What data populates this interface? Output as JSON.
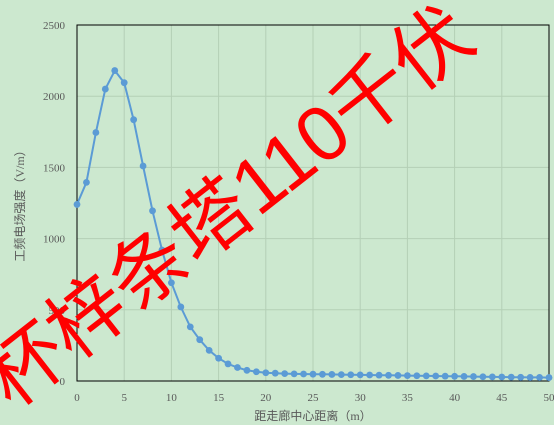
{
  "chart_data": {
    "type": "line",
    "title": "",
    "xlabel": "距走廊中心距离（m）",
    "ylabel": "工频电场强度（V/m）",
    "xlim": [
      0,
      50
    ],
    "ylim": [
      0,
      2500
    ],
    "xticks": [
      0,
      5,
      10,
      15,
      20,
      25,
      30,
      35,
      40,
      45,
      50
    ],
    "yticks": [
      0,
      500,
      1000,
      1500,
      2000,
      2500
    ],
    "grid": true,
    "legend": "none",
    "line_color": "#5b9bd5",
    "series": [
      {
        "x": [
          0,
          1,
          2,
          3,
          4,
          5,
          6,
          7,
          8,
          9,
          10,
          11,
          12,
          13,
          14,
          15,
          16,
          17,
          18,
          19,
          20,
          21,
          22,
          23,
          24,
          25,
          26,
          27,
          28,
          29,
          30,
          31,
          32,
          33,
          34,
          35,
          36,
          37,
          38,
          39,
          40,
          41,
          42,
          43,
          44,
          45,
          46,
          47,
          48,
          49,
          50
        ],
        "values": [
          1240,
          1395,
          1745,
          2050,
          2180,
          2095,
          1835,
          1510,
          1195,
          920,
          690,
          520,
          380,
          290,
          215,
          160,
          120,
          95,
          75,
          65,
          58,
          55,
          52,
          50,
          49,
          48,
          47,
          46,
          45,
          44,
          43,
          42,
          41,
          40,
          39,
          38,
          37,
          36,
          35,
          34,
          33,
          32,
          31,
          30,
          29,
          28,
          27,
          26,
          25,
          25,
          24
        ]
      }
    ]
  },
  "watermark": {
    "text": "杯梓条塔110千伏"
  }
}
